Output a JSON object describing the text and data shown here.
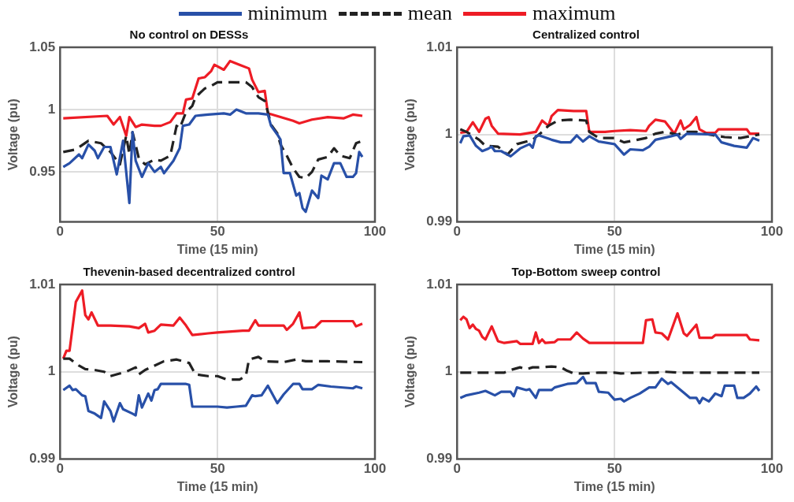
{
  "chart_data": [
    {
      "type": "line",
      "title": "No control on DESSs",
      "xlabel": "Time (15 min)",
      "ylabel": "Voltage (pu)",
      "xlim": [
        0,
        100
      ],
      "xticks": [
        0,
        50,
        100
      ],
      "ylim": [
        0.91,
        1.05
      ],
      "yticks": [
        0.95,
        1,
        1.05
      ],
      "grid": true,
      "legend": "top",
      "marker": "none",
      "series": [
        {
          "name": "minimum",
          "color": "#2850a8",
          "line_style": "solid",
          "x": [
            1,
            3,
            6,
            7,
            9,
            11,
            12,
            14,
            16,
            18,
            20,
            22,
            23,
            24,
            26,
            28,
            30,
            32,
            33,
            36,
            38,
            39,
            41,
            43,
            47,
            52,
            54,
            56,
            59,
            63,
            66,
            67,
            69,
            70,
            71,
            73,
            74,
            75,
            76,
            77,
            78,
            80,
            82,
            83,
            85,
            87,
            89,
            91,
            93,
            94,
            95,
            96
          ],
          "values": [
            0.954,
            0.957,
            0.964,
            0.961,
            0.972,
            0.967,
            0.961,
            0.97,
            0.97,
            0.948,
            0.975,
            0.925,
            0.982,
            0.959,
            0.946,
            0.957,
            0.95,
            0.954,
            0.949,
            0.959,
            0.969,
            0.987,
            0.988,
            0.995,
            0.996,
            0.997,
            0.996,
            1.0,
            0.997,
            0.997,
            0.996,
            0.987,
            0.98,
            0.976,
            0.949,
            0.949,
            0.94,
            0.931,
            0.933,
            0.921,
            0.918,
            0.935,
            0.929,
            0.947,
            0.944,
            0.957,
            0.957,
            0.946,
            0.946,
            0.949,
            0.966,
            0.962
          ]
        },
        {
          "name": "mean",
          "color": "#222222",
          "line_style": "dashed",
          "x": [
            1,
            5,
            9,
            13,
            16,
            19,
            21,
            22,
            23,
            25,
            27,
            30,
            32,
            35,
            37,
            38,
            40,
            42,
            43,
            46,
            48,
            50,
            55,
            59,
            61,
            63,
            65,
            66,
            67,
            69,
            70,
            72,
            74,
            76,
            78,
            80,
            82,
            85,
            87,
            89,
            92,
            94,
            96
          ],
          "values": [
            0.966,
            0.968,
            0.975,
            0.973,
            0.966,
            0.956,
            0.979,
            0.964,
            0.982,
            0.961,
            0.956,
            0.96,
            0.959,
            0.963,
            0.987,
            0.985,
            0.998,
            1.003,
            1.01,
            1.017,
            1.019,
            1.022,
            1.022,
            1.022,
            1.018,
            1.01,
            1.007,
            0.998,
            0.988,
            0.981,
            0.972,
            0.963,
            0.953,
            0.946,
            0.945,
            0.95,
            0.96,
            0.962,
            0.969,
            0.963,
            0.961,
            0.973,
            0.975
          ]
        },
        {
          "name": "maximum",
          "color": "#ee1c25",
          "line_style": "solid",
          "x": [
            1,
            15,
            17,
            19,
            21,
            22,
            24,
            26,
            30,
            32,
            35,
            37,
            39,
            40,
            42,
            44,
            46,
            48,
            49,
            52,
            54,
            57,
            60,
            61,
            63,
            65,
            66,
            70,
            74,
            76,
            80,
            85,
            90,
            93,
            96
          ],
          "values": [
            0.993,
            0.995,
            0.988,
            0.994,
            0.979,
            0.994,
            0.986,
            0.988,
            0.987,
            0.987,
            0.99,
            0.997,
            0.997,
            1.008,
            1.009,
            1.025,
            1.026,
            1.031,
            1.036,
            1.032,
            1.039,
            1.036,
            1.033,
            1.024,
            1.014,
            1.015,
            0.997,
            0.994,
            0.991,
            0.989,
            0.992,
            0.994,
            0.993,
            0.996,
            0.995
          ]
        }
      ]
    },
    {
      "type": "line",
      "title": "Centralized control",
      "xlabel": "Time (15 min)",
      "ylabel": "Voltage (pu)",
      "xlim": [
        0,
        100
      ],
      "xticks": [
        0,
        50,
        100
      ],
      "ylim": [
        0.99,
        1.01
      ],
      "yticks": [
        0.99,
        1,
        1.01
      ],
      "grid": true,
      "legend": false,
      "marker": "none",
      "series": [
        {
          "color": "#2850a8",
          "line_style": "solid",
          "x": [
            1,
            2,
            4,
            6,
            8,
            10,
            11,
            12,
            14,
            17,
            20,
            23,
            24,
            25,
            26,
            30,
            33,
            36,
            38,
            40,
            42,
            45,
            50,
            53,
            55,
            59,
            61,
            63,
            68,
            70,
            71,
            73,
            82,
            84,
            88,
            92,
            94,
            96
          ],
          "values": [
            0.999,
            0.9998,
            0.9999,
            0.9987,
            0.9981,
            0.9984,
            0.9986,
            0.9981,
            0.9981,
            0.9975,
            0.9984,
            0.9989,
            0.9985,
            0.9998,
            0.9999,
            0.9994,
            0.9991,
            0.9991,
            0.9999,
            0.9992,
            0.9998,
            0.9992,
            0.9989,
            0.9977,
            0.9983,
            0.9982,
            0.9986,
            0.9994,
            0.9998,
            1.0,
            0.9995,
            1.0001,
            1.0,
            0.9991,
            0.9987,
            0.9985,
            0.9996,
            0.9993
          ]
        },
        {
          "color": "#222222",
          "line_style": "dashed",
          "x": [
            1,
            3,
            7,
            9,
            13,
            16,
            19,
            24,
            27,
            29,
            32,
            36,
            41,
            42,
            45,
            50,
            53,
            56,
            60,
            63,
            66,
            70,
            73,
            76,
            80,
            85,
            90,
            96
          ],
          "values": [
            1.0006,
            1.0003,
            0.9994,
            0.9987,
            0.9986,
            0.9977,
            0.9989,
            0.9994,
            1.0003,
            1.001,
            1.0016,
            1.0017,
            1.0016,
            1.0003,
            0.9996,
            0.9996,
            0.9991,
            0.9993,
            0.9996,
            1.0001,
            1.0003,
            1.0,
            1.0003,
            1.0003,
            1.0,
            0.9997,
            0.9996,
            1.0
          ]
        },
        {
          "color": "#ee1c25",
          "line_style": "solid",
          "x": [
            1,
            3,
            5,
            7,
            9,
            10,
            11,
            13,
            20,
            25,
            27,
            29,
            30,
            32,
            37,
            41,
            42,
            47,
            50,
            55,
            60,
            61,
            63,
            66,
            69,
            71,
            72,
            74,
            76,
            77,
            79,
            82,
            83,
            92,
            93,
            96
          ],
          "values": [
            1.0002,
            1.0003,
            1.0014,
            1.0003,
            1.0018,
            1.002,
            1.001,
            1.0001,
            1.0,
            1.0003,
            1.0016,
            1.001,
            1.0021,
            1.0028,
            1.0027,
            1.0027,
            1.0003,
            1.0003,
            1.0004,
            1.0005,
            1.0004,
            1.001,
            1.0017,
            1.0015,
            1.0001,
            1.0016,
            1.0006,
            1.0011,
            1.002,
            1.0006,
            1.0002,
            1.0002,
            1.0006,
            1.0006,
            1.0001,
            1.0001
          ]
        }
      ]
    },
    {
      "type": "line",
      "title": "Thevenin-based decentralized control",
      "xlabel": "Time (15 min)",
      "ylabel": "Voltage (pu)",
      "xlim": [
        0,
        100
      ],
      "xticks": [
        0,
        50,
        100
      ],
      "ylim": [
        0.99,
        1.01
      ],
      "yticks": [
        0.99,
        1,
        1.01
      ],
      "grid": true,
      "legend": false,
      "marker": "none",
      "series": [
        {
          "color": "#2850a8",
          "line_style": "solid",
          "x": [
            1,
            3,
            4,
            5,
            7,
            8,
            9,
            11,
            13,
            14,
            16,
            17,
            19,
            20,
            23,
            24,
            25,
            26,
            28,
            29,
            30,
            31,
            32,
            35,
            40,
            41,
            42,
            46,
            50,
            53,
            56,
            59,
            61,
            62,
            64,
            66,
            69,
            71,
            74,
            76,
            77,
            80,
            82,
            86,
            93,
            94,
            96
          ],
          "values": [
            0.9979,
            0.9984,
            0.9979,
            0.998,
            0.9973,
            0.9972,
            0.9955,
            0.9952,
            0.9947,
            0.9966,
            0.9955,
            0.9943,
            0.9964,
            0.9957,
            0.9952,
            0.995,
            0.9973,
            0.9959,
            0.9975,
            0.9967,
            0.9979,
            0.998,
            0.9986,
            0.9986,
            0.9986,
            0.9985,
            0.996,
            0.996,
            0.996,
            0.9959,
            0.996,
            0.9961,
            0.9973,
            0.9972,
            0.9973,
            0.9984,
            0.9964,
            0.9974,
            0.9986,
            0.9986,
            0.998,
            0.998,
            0.9985,
            0.9983,
            0.9981,
            0.9983,
            0.9981
          ]
        },
        {
          "color": "#222222",
          "line_style": "dashed",
          "x": [
            1,
            3,
            6,
            8,
            11,
            14,
            16,
            18,
            21,
            24,
            25,
            27,
            30,
            33,
            37,
            41,
            43,
            47,
            50,
            53,
            57,
            59,
            60,
            63,
            65,
            71,
            75,
            78,
            85,
            96
          ],
          "values": [
            1.0015,
            1.0015,
            1.0007,
            1.0003,
            1.0002,
            1.0,
            0.9995,
            0.9997,
            1.0,
            1.0005,
            0.9997,
            1.0002,
            1.0007,
            1.0012,
            1.0014,
            1.001,
            0.9997,
            0.9995,
            0.9995,
            0.9991,
            0.9991,
            0.9995,
            1.0014,
            1.0017,
            1.0012,
            1.0011,
            1.0014,
            1.0012,
            1.0012,
            1.0011
          ]
        },
        {
          "color": "#ee1c25",
          "line_style": "solid",
          "x": [
            1,
            2,
            3,
            5,
            7,
            8,
            9,
            10,
            12,
            16,
            22,
            25,
            27,
            28,
            30,
            32,
            36,
            38,
            40,
            42,
            47,
            50,
            58,
            60,
            62,
            63,
            71,
            72,
            74,
            76,
            77,
            81,
            83,
            93,
            94,
            96
          ],
          "values": [
            1.0015,
            1.0024,
            1.0024,
            1.008,
            1.0093,
            1.0065,
            1.006,
            1.0068,
            1.0053,
            1.0053,
            1.0052,
            1.005,
            1.0055,
            1.0045,
            1.0047,
            1.0054,
            1.0053,
            1.0062,
            1.0053,
            1.0042,
            1.0044,
            1.0045,
            1.0047,
            1.0047,
            1.0059,
            1.0053,
            1.0053,
            1.0048,
            1.0055,
            1.0068,
            1.005,
            1.0051,
            1.0058,
            1.0058,
            1.0052,
            1.0055
          ]
        }
      ]
    },
    {
      "type": "line",
      "title": "Top-Bottom sweep control",
      "xlabel": "Time (15 min)",
      "ylabel": "Voltage (pu)",
      "xlim": [
        0,
        100
      ],
      "xticks": [
        0,
        50,
        100
      ],
      "ylim": [
        0.99,
        1.01
      ],
      "yticks": [
        0.99,
        1,
        1.01
      ],
      "grid": true,
      "legend": false,
      "marker": "none",
      "series": [
        {
          "color": "#2850a8",
          "line_style": "solid",
          "x": [
            1,
            3,
            7,
            9,
            12,
            14,
            17,
            18,
            19,
            22,
            23,
            25,
            26,
            30,
            31,
            35,
            38,
            40,
            41,
            44,
            45,
            48,
            50,
            52,
            53,
            55,
            58,
            61,
            63,
            65,
            67,
            68,
            72,
            74,
            76,
            77,
            78,
            80,
            82,
            84,
            85,
            88,
            89,
            91,
            93,
            95,
            96
          ],
          "values": [
            0.997,
            0.9973,
            0.9976,
            0.9978,
            0.9973,
            0.9977,
            0.9977,
            0.9972,
            0.9982,
            0.9979,
            0.998,
            0.997,
            0.9979,
            0.9979,
            0.9982,
            0.9986,
            0.9987,
            0.9994,
            0.9987,
            0.9987,
            0.9977,
            0.9976,
            0.9968,
            0.9969,
            0.9966,
            0.997,
            0.9975,
            0.9982,
            0.9982,
            0.9992,
            0.9986,
            0.9988,
            0.9976,
            0.997,
            0.997,
            0.9964,
            0.997,
            0.9966,
            0.9975,
            0.9972,
            0.9984,
            0.9984,
            0.997,
            0.997,
            0.9975,
            0.9983,
            0.9978
          ]
        },
        {
          "color": "#222222",
          "line_style": "dashed",
          "x": [
            1,
            15,
            17,
            20,
            22,
            24,
            26,
            30,
            33,
            35,
            37,
            40,
            45,
            50,
            52,
            60,
            63,
            66,
            70,
            96
          ],
          "values": [
            0.9999,
            0.9999,
            1.0002,
            1.0005,
            1.0003,
            1.0005,
            1.0005,
            1.0006,
            1.0005,
            1.0001,
            0.9998,
            0.9998,
            0.9999,
            0.9999,
            0.9998,
            0.9999,
            0.9999,
            1.0,
            0.9999,
            0.9999
          ]
        },
        {
          "color": "#ee1c25",
          "line_style": "solid",
          "x": [
            1,
            2,
            3,
            4,
            5,
            6,
            7,
            8,
            9,
            11,
            13,
            15,
            19,
            20,
            24,
            25,
            26,
            27,
            28,
            31,
            32,
            36,
            38,
            40,
            42,
            50,
            59,
            60,
            62,
            63,
            65,
            67,
            70,
            72,
            73,
            76,
            77,
            81,
            82,
            92,
            93,
            96
          ],
          "values": [
            1.0059,
            1.0063,
            1.006,
            1.005,
            1.0054,
            1.0049,
            1.0047,
            1.004,
            1.0037,
            1.0052,
            1.0035,
            1.0033,
            1.0035,
            1.0032,
            1.0032,
            1.0045,
            1.0033,
            1.0037,
            1.0033,
            1.0034,
            1.0037,
            1.0037,
            1.0045,
            1.0038,
            1.0033,
            1.0033,
            1.0033,
            1.0059,
            1.006,
            1.0045,
            1.0044,
            1.0037,
            1.0067,
            1.0044,
            1.0041,
            1.0054,
            1.0039,
            1.0039,
            1.0042,
            1.0042,
            1.0037,
            1.0036
          ]
        }
      ]
    }
  ]
}
